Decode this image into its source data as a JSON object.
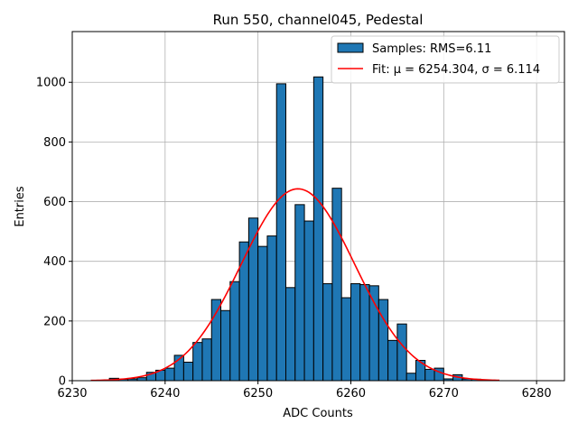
{
  "chart_data": {
    "type": "bar",
    "title": "Run 550, channel045, Pedestal",
    "xlabel": "ADC Counts",
    "ylabel": "Entries",
    "xlim": [
      6230,
      6283
    ],
    "ylim": [
      0,
      1170
    ],
    "xticks": [
      6230,
      6240,
      6250,
      6260,
      6270,
      6280
    ],
    "yticks": [
      0,
      200,
      400,
      600,
      800,
      1000
    ],
    "grid": true,
    "legend_position": "top-right",
    "bar_color": "#1f77b4",
    "bar_edge_color": "#000000",
    "fit_color": "#ff0000",
    "bin_width": 1,
    "bin_starts": [
      6234,
      6235,
      6236,
      6237,
      6238,
      6239,
      6240,
      6241,
      6242,
      6243,
      6244,
      6245,
      6246,
      6247,
      6248,
      6249,
      6250,
      6251,
      6252,
      6253,
      6254,
      6255,
      6256,
      6257,
      6258,
      6259,
      6260,
      6261,
      6262,
      6263,
      6264,
      6265,
      6266,
      6267,
      6268,
      6269,
      6270,
      6271,
      6272,
      6273,
      6274
    ],
    "counts": [
      8,
      5,
      6,
      10,
      28,
      35,
      42,
      85,
      62,
      128,
      140,
      272,
      235,
      332,
      465,
      545,
      450,
      485,
      995,
      312,
      590,
      535,
      1018,
      325,
      645,
      278,
      325,
      322,
      318,
      272,
      135,
      190,
      25,
      68,
      38,
      42,
      6,
      20,
      6,
      5,
      2
    ],
    "series": [
      {
        "name": "Samples: RMS=6.11",
        "kind": "histogram"
      },
      {
        "name": "Fit: μ = 6254.304, σ = 6.114",
        "kind": "gaussian",
        "mu": 6254.304,
        "sigma": 6.114,
        "amplitude": 643,
        "x_range": [
          6232,
          6276
        ]
      }
    ]
  }
}
